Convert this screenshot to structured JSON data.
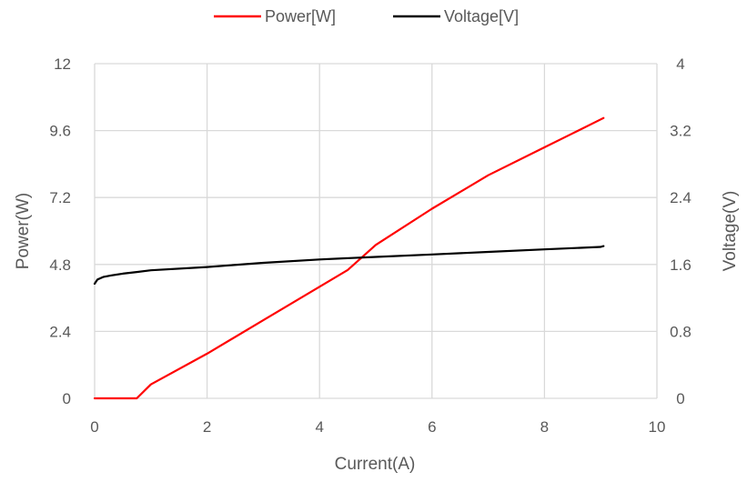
{
  "chart_data": {
    "type": "line",
    "xlabel": "Current(A)",
    "ylabel": "Power(W)",
    "y2label": "Voltage(V)",
    "xlim": [
      0,
      10
    ],
    "ylim": [
      0,
      12
    ],
    "y2lim": [
      0,
      4
    ],
    "x_ticks": [
      "0",
      "2",
      "4",
      "6",
      "8",
      "10"
    ],
    "y_ticks": [
      "0",
      "2.4",
      "4.8",
      "7.2",
      "9.6",
      "12"
    ],
    "y2_ticks": [
      "0",
      "0.8",
      "1.6",
      "2.4",
      "3.2",
      "4"
    ],
    "grid": true,
    "legend_position": "top",
    "series": [
      {
        "name": "Power[W]",
        "axis": "left",
        "color": "#ff0000",
        "x": [
          0,
          0.3,
          0.5,
          0.75,
          1,
          2,
          3,
          4,
          4.5,
          5,
          6,
          7,
          8,
          8.5,
          9,
          9.05
        ],
        "y": [
          0,
          0,
          0,
          0,
          0.5,
          1.6,
          2.8,
          4.0,
          4.6,
          5.5,
          6.8,
          8.0,
          9.0,
          9.5,
          10.0,
          10.05
        ]
      },
      {
        "name": "Voltage[V]",
        "axis": "right",
        "color": "#000000",
        "x": [
          0,
          0.05,
          0.15,
          0.3,
          0.5,
          0.75,
          1,
          2,
          3,
          4,
          5,
          6,
          7,
          8,
          9,
          9.05
        ],
        "y": [
          1.37,
          1.42,
          1.45,
          1.47,
          1.49,
          1.51,
          1.53,
          1.57,
          1.62,
          1.66,
          1.69,
          1.72,
          1.75,
          1.78,
          1.81,
          1.82
        ]
      }
    ]
  }
}
